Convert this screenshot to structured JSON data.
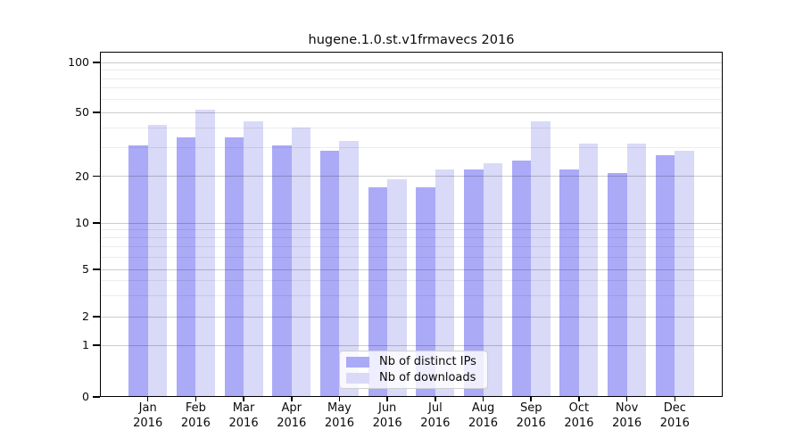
{
  "chart_data": {
    "type": "bar",
    "title": "hugene.1.0.st.v1frmavecs 2016",
    "categories": [
      "Jan",
      "Feb",
      "Mar",
      "Apr",
      "May",
      "Jun",
      "Jul",
      "Aug",
      "Sep",
      "Oct",
      "Nov",
      "Dec"
    ],
    "category_year": "2016",
    "series": [
      {
        "name": "Nb of distinct IPs",
        "color": "#aaaaf7",
        "values": [
          31,
          35,
          35,
          31,
          29,
          17,
          17,
          22,
          25,
          22,
          21,
          27
        ]
      },
      {
        "name": "Nb of downloads",
        "color": "#d9d9f8",
        "values": [
          42,
          52,
          44,
          40,
          33,
          19,
          22,
          24,
          44,
          32,
          32,
          29
        ]
      }
    ],
    "y_axis": {
      "scale": "pseudo-log",
      "tick_labels": [
        "0",
        "1",
        "2",
        "5",
        "10",
        "20",
        "50",
        "100"
      ],
      "tick_values": [
        0,
        1,
        2,
        5,
        10,
        20,
        50,
        100
      ],
      "minor_tick_values": [
        3,
        4,
        6,
        7,
        8,
        9,
        30,
        40,
        60,
        70,
        80,
        90
      ],
      "range": [
        0,
        100
      ]
    },
    "legend": {
      "position": "bottom-center",
      "entries": [
        "Nb of distinct IPs",
        "Nb of downloads"
      ]
    },
    "grid": {
      "major_color": "rgba(0,0,0,0.20)",
      "minor_color": "rgba(0,0,0,0.075)",
      "drawn_over_bars": true
    }
  }
}
